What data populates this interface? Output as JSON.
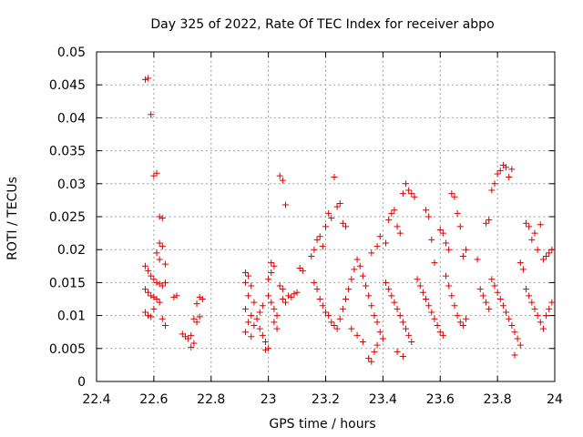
{
  "chart_data": {
    "type": "scatter",
    "title": "Day 325 of 2022, Rate Of TEC Index for receiver abpo",
    "xlabel": "GPS time / hours",
    "ylabel": "ROTI / TECUs",
    "xlim": [
      22.4,
      24.0
    ],
    "ylim": [
      0,
      0.05
    ],
    "x_ticks": [
      "22.4",
      "22.6",
      "22.8",
      "23",
      "23.2",
      "23.4",
      "23.6",
      "23.8",
      "24"
    ],
    "y_ticks": [
      "0",
      "0.005",
      "0.01",
      "0.015",
      "0.02",
      "0.025",
      "0.03",
      "0.035",
      "0.04",
      "0.045",
      "0.05"
    ],
    "grid": true,
    "marker": "+",
    "marker_color": "#dd0000",
    "series": [
      {
        "points": [
          [
            22.57,
            0.0458
          ],
          [
            22.58,
            0.046
          ],
          [
            22.59,
            0.0405
          ],
          [
            22.6,
            0.0312
          ],
          [
            22.61,
            0.0316
          ],
          [
            22.62,
            0.025
          ],
          [
            22.63,
            0.0248
          ],
          [
            22.62,
            0.021
          ],
          [
            22.63,
            0.0205
          ],
          [
            22.61,
            0.0195
          ],
          [
            22.62,
            0.0185
          ],
          [
            22.64,
            0.0178
          ],
          [
            22.57,
            0.0175
          ],
          [
            22.58,
            0.0168
          ],
          [
            22.59,
            0.016
          ],
          [
            22.6,
            0.0155
          ],
          [
            22.61,
            0.015
          ],
          [
            22.62,
            0.0148
          ],
          [
            22.63,
            0.0145
          ],
          [
            22.64,
            0.015
          ],
          [
            22.57,
            0.014
          ],
          [
            22.58,
            0.0135
          ],
          [
            22.59,
            0.013
          ],
          [
            22.6,
            0.0128
          ],
          [
            22.61,
            0.0125
          ],
          [
            22.62,
            0.012
          ],
          [
            22.57,
            0.0105
          ],
          [
            22.58,
            0.01
          ],
          [
            22.59,
            0.0098
          ],
          [
            22.6,
            0.011
          ],
          [
            22.63,
            0.0095
          ],
          [
            22.64,
            0.0085
          ],
          [
            22.67,
            0.0128
          ],
          [
            22.68,
            0.013
          ],
          [
            22.7,
            0.0072
          ],
          [
            22.71,
            0.0068
          ],
          [
            22.72,
            0.0065
          ],
          [
            22.73,
            0.007
          ],
          [
            22.73,
            0.0052
          ],
          [
            22.74,
            0.0058
          ],
          [
            22.74,
            0.0095
          ],
          [
            22.75,
            0.009
          ],
          [
            22.76,
            0.0098
          ],
          [
            22.76,
            0.0128
          ],
          [
            22.77,
            0.0125
          ],
          [
            22.75,
            0.0118
          ],
          [
            22.92,
            0.0165
          ],
          [
            22.93,
            0.016
          ],
          [
            22.92,
            0.015
          ],
          [
            22.94,
            0.0145
          ],
          [
            22.93,
            0.013
          ],
          [
            22.95,
            0.012
          ],
          [
            22.92,
            0.011
          ],
          [
            22.94,
            0.01
          ],
          [
            22.93,
            0.009
          ],
          [
            22.95,
            0.0085
          ],
          [
            22.92,
            0.0075
          ],
          [
            22.94,
            0.0068
          ],
          [
            22.96,
            0.0095
          ],
          [
            22.97,
            0.0105
          ],
          [
            22.98,
            0.0115
          ],
          [
            22.97,
            0.008
          ],
          [
            22.98,
            0.007
          ],
          [
            22.99,
            0.006
          ],
          [
            23.0,
            0.005
          ],
          [
            22.99,
            0.0048
          ],
          [
            23.0,
            0.0155
          ],
          [
            23.01,
            0.0165
          ],
          [
            23.02,
            0.0175
          ],
          [
            23.01,
            0.018
          ],
          [
            23.0,
            0.013
          ],
          [
            23.01,
            0.012
          ],
          [
            23.02,
            0.011
          ],
          [
            23.03,
            0.01
          ],
          [
            23.02,
            0.009
          ],
          [
            23.03,
            0.008
          ],
          [
            23.04,
            0.0145
          ],
          [
            23.05,
            0.014
          ],
          [
            23.04,
            0.0312
          ],
          [
            23.05,
            0.0305
          ],
          [
            23.06,
            0.0268
          ],
          [
            23.05,
            0.0125
          ],
          [
            23.06,
            0.012
          ],
          [
            23.07,
            0.013
          ],
          [
            23.08,
            0.0128
          ],
          [
            23.09,
            0.0133
          ],
          [
            23.1,
            0.0135
          ],
          [
            23.11,
            0.0172
          ],
          [
            23.12,
            0.0168
          ],
          [
            23.15,
            0.019
          ],
          [
            23.16,
            0.02
          ],
          [
            23.17,
            0.0215
          ],
          [
            23.18,
            0.022
          ],
          [
            23.19,
            0.0205
          ],
          [
            23.2,
            0.0235
          ],
          [
            23.21,
            0.0255
          ],
          [
            23.22,
            0.0248
          ],
          [
            23.23,
            0.031
          ],
          [
            23.24,
            0.0265
          ],
          [
            23.25,
            0.027
          ],
          [
            23.26,
            0.024
          ],
          [
            23.27,
            0.0235
          ],
          [
            23.16,
            0.015
          ],
          [
            23.17,
            0.014
          ],
          [
            23.18,
            0.0125
          ],
          [
            23.19,
            0.0115
          ],
          [
            23.2,
            0.0105
          ],
          [
            23.21,
            0.01
          ],
          [
            23.22,
            0.009
          ],
          [
            23.23,
            0.0085
          ],
          [
            23.24,
            0.008
          ],
          [
            23.25,
            0.0095
          ],
          [
            23.26,
            0.011
          ],
          [
            23.27,
            0.0125
          ],
          [
            23.28,
            0.014
          ],
          [
            23.29,
            0.0155
          ],
          [
            23.3,
            0.017
          ],
          [
            23.31,
            0.0185
          ],
          [
            23.32,
            0.0175
          ],
          [
            23.33,
            0.016
          ],
          [
            23.34,
            0.0145
          ],
          [
            23.35,
            0.013
          ],
          [
            23.36,
            0.0115
          ],
          [
            23.37,
            0.01
          ],
          [
            23.38,
            0.009
          ],
          [
            23.39,
            0.0075
          ],
          [
            23.4,
            0.0065
          ],
          [
            23.35,
            0.0035
          ],
          [
            23.36,
            0.003
          ],
          [
            23.37,
            0.0045
          ],
          [
            23.38,
            0.0055
          ],
          [
            23.33,
            0.006
          ],
          [
            23.31,
            0.007
          ],
          [
            23.29,
            0.008
          ],
          [
            23.36,
            0.0195
          ],
          [
            23.38,
            0.0205
          ],
          [
            23.39,
            0.022
          ],
          [
            23.41,
            0.021
          ],
          [
            23.42,
            0.0245
          ],
          [
            23.43,
            0.0255
          ],
          [
            23.44,
            0.026
          ],
          [
            23.45,
            0.0235
          ],
          [
            23.46,
            0.0225
          ],
          [
            23.47,
            0.0285
          ],
          [
            23.48,
            0.03
          ],
          [
            23.49,
            0.029
          ],
          [
            23.5,
            0.0285
          ],
          [
            23.51,
            0.028
          ],
          [
            23.41,
            0.015
          ],
          [
            23.42,
            0.014
          ],
          [
            23.43,
            0.013
          ],
          [
            23.44,
            0.012
          ],
          [
            23.45,
            0.011
          ],
          [
            23.46,
            0.01
          ],
          [
            23.47,
            0.009
          ],
          [
            23.48,
            0.008
          ],
          [
            23.49,
            0.007
          ],
          [
            23.5,
            0.006
          ],
          [
            23.45,
            0.0045
          ],
          [
            23.47,
            0.0038
          ],
          [
            23.52,
            0.0155
          ],
          [
            23.53,
            0.0145
          ],
          [
            23.54,
            0.0135
          ],
          [
            23.55,
            0.0125
          ],
          [
            23.56,
            0.0115
          ],
          [
            23.57,
            0.0105
          ],
          [
            23.58,
            0.0095
          ],
          [
            23.59,
            0.0085
          ],
          [
            23.6,
            0.0075
          ],
          [
            23.61,
            0.007
          ],
          [
            23.55,
            0.026
          ],
          [
            23.56,
            0.025
          ],
          [
            23.57,
            0.0215
          ],
          [
            23.58,
            0.018
          ],
          [
            23.6,
            0.023
          ],
          [
            23.61,
            0.0225
          ],
          [
            23.62,
            0.021
          ],
          [
            23.63,
            0.02
          ],
          [
            23.64,
            0.0285
          ],
          [
            23.65,
            0.028
          ],
          [
            23.66,
            0.0255
          ],
          [
            23.67,
            0.0235
          ],
          [
            23.68,
            0.019
          ],
          [
            23.69,
            0.02
          ],
          [
            23.62,
            0.016
          ],
          [
            23.63,
            0.0145
          ],
          [
            23.64,
            0.013
          ],
          [
            23.65,
            0.0115
          ],
          [
            23.66,
            0.01
          ],
          [
            23.67,
            0.009
          ],
          [
            23.68,
            0.0085
          ],
          [
            23.69,
            0.0095
          ],
          [
            23.73,
            0.0185
          ],
          [
            23.74,
            0.014
          ],
          [
            23.75,
            0.013
          ],
          [
            23.76,
            0.012
          ],
          [
            23.77,
            0.011
          ],
          [
            23.76,
            0.024
          ],
          [
            23.77,
            0.0245
          ],
          [
            23.78,
            0.029
          ],
          [
            23.79,
            0.03
          ],
          [
            23.8,
            0.0315
          ],
          [
            23.81,
            0.032
          ],
          [
            23.82,
            0.0328
          ],
          [
            23.83,
            0.0325
          ],
          [
            23.84,
            0.031
          ],
          [
            23.85,
            0.0322
          ],
          [
            23.78,
            0.0155
          ],
          [
            23.79,
            0.0145
          ],
          [
            23.8,
            0.0135
          ],
          [
            23.81,
            0.0125
          ],
          [
            23.82,
            0.0115
          ],
          [
            23.83,
            0.0105
          ],
          [
            23.84,
            0.0095
          ],
          [
            23.85,
            0.0085
          ],
          [
            23.86,
            0.0075
          ],
          [
            23.87,
            0.0065
          ],
          [
            23.86,
            0.004
          ],
          [
            23.88,
            0.0055
          ],
          [
            23.88,
            0.018
          ],
          [
            23.89,
            0.017
          ],
          [
            23.9,
            0.024
          ],
          [
            23.91,
            0.0235
          ],
          [
            23.92,
            0.0215
          ],
          [
            23.93,
            0.0225
          ],
          [
            23.94,
            0.02
          ],
          [
            23.95,
            0.0238
          ],
          [
            23.96,
            0.0185
          ],
          [
            23.97,
            0.019
          ],
          [
            23.98,
            0.0195
          ],
          [
            23.99,
            0.02
          ],
          [
            23.9,
            0.014
          ],
          [
            23.91,
            0.013
          ],
          [
            23.92,
            0.012
          ],
          [
            23.93,
            0.011
          ],
          [
            23.94,
            0.01
          ],
          [
            23.95,
            0.009
          ],
          [
            23.96,
            0.008
          ],
          [
            23.97,
            0.01
          ],
          [
            23.98,
            0.011
          ],
          [
            23.99,
            0.012
          ]
        ]
      }
    ]
  }
}
